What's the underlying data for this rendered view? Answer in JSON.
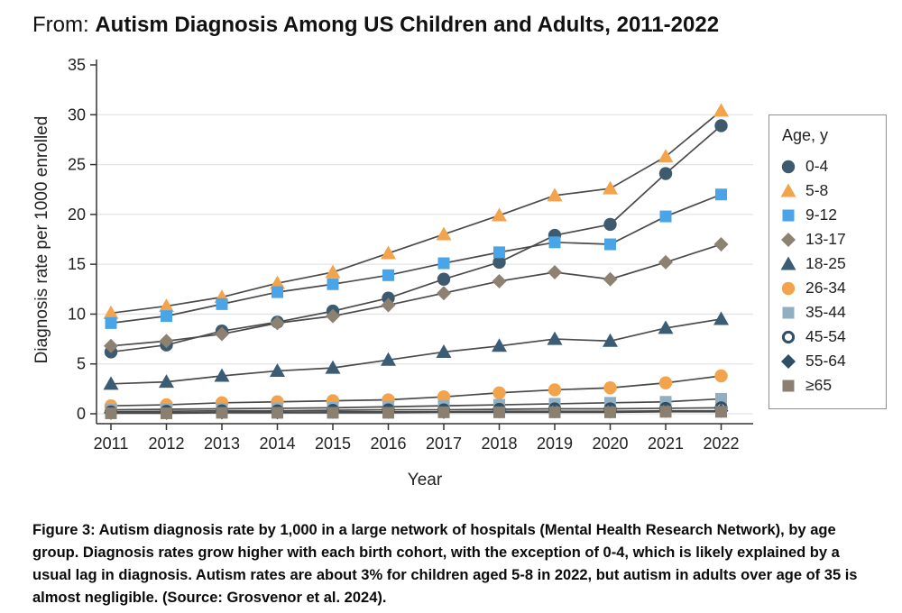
{
  "figure": {
    "title_prefix": "From:",
    "title": "Autism Diagnosis Among US Children and Adults, 2011-2022",
    "caption": "Figure 3: Autism diagnosis rate by 1,000 in a large network of hospitals (Mental Health Research Network), by age group. Diagnosis rates grow higher with each birth cohort, with the exception of 0-4, which is likely explained by a usual lag in diagnosis. Autism rates are about 3% for children aged 5-8 in 2022, but autism in adults over age of 35 is almost negligible. (Source: Grosvenor et al. 2024)."
  },
  "chart_data": {
    "type": "line",
    "title": "Autism Diagnosis Among US Children and Adults, 2011-2022",
    "xlabel": "Year",
    "ylabel": "Diagnosis rate per 1000 enrolled",
    "x": [
      "2011",
      "2012",
      "2013",
      "2014",
      "2015",
      "2016",
      "2017",
      "2018",
      "2019",
      "2020",
      "2021",
      "2022"
    ],
    "ylim": [
      0,
      35
    ],
    "yticks": [
      0,
      5,
      10,
      15,
      20,
      25,
      30,
      35
    ],
    "grid": "horizontal",
    "legend_title": "Age, y",
    "legend_position": "right",
    "line_color": "#4a4a4a",
    "grid_color": "#e4e4e4",
    "axis_color": "#333333",
    "series": [
      {
        "name": "0-4",
        "marker": "circle",
        "color": "#3e5a6e",
        "values": [
          6.2,
          6.9,
          8.3,
          9.2,
          10.3,
          11.6,
          13.5,
          15.2,
          17.9,
          19.0,
          24.1,
          28.9
        ]
      },
      {
        "name": "5-8",
        "marker": "triangle",
        "color": "#f3a34b",
        "values": [
          10.1,
          10.8,
          11.7,
          13.1,
          14.2,
          16.1,
          18.0,
          19.9,
          21.9,
          22.6,
          25.8,
          30.4
        ]
      },
      {
        "name": "9-12",
        "marker": "square",
        "color": "#4aa4e8",
        "values": [
          9.1,
          9.8,
          11.0,
          12.2,
          13.0,
          13.9,
          15.1,
          16.2,
          17.2,
          17.0,
          19.8,
          22.0
        ]
      },
      {
        "name": "13-17",
        "marker": "diamond",
        "color": "#8d8272",
        "values": [
          6.8,
          7.3,
          8.0,
          9.1,
          9.8,
          10.9,
          12.1,
          13.3,
          14.2,
          13.5,
          15.2,
          17.0
        ]
      },
      {
        "name": "18-25",
        "marker": "triangle",
        "color": "#3a5c74",
        "values": [
          3.0,
          3.2,
          3.8,
          4.3,
          4.6,
          5.4,
          6.2,
          6.8,
          7.5,
          7.3,
          8.6,
          9.5
        ]
      },
      {
        "name": "26-34",
        "marker": "circle",
        "color": "#f3a34b",
        "values": [
          0.8,
          0.9,
          1.1,
          1.2,
          1.3,
          1.4,
          1.7,
          2.1,
          2.4,
          2.6,
          3.1,
          3.8
        ]
      },
      {
        "name": "35-44",
        "marker": "square",
        "color": "#92afc2",
        "values": [
          0.4,
          0.45,
          0.5,
          0.55,
          0.6,
          0.7,
          0.8,
          0.9,
          1.0,
          1.1,
          1.2,
          1.5
        ]
      },
      {
        "name": "45-54",
        "marker": "open-circle",
        "color": "#2f4f66",
        "values": [
          0.2,
          0.25,
          0.3,
          0.3,
          0.35,
          0.4,
          0.4,
          0.45,
          0.5,
          0.5,
          0.55,
          0.6
        ]
      },
      {
        "name": "55-64",
        "marker": "diamond",
        "color": "#2f4f66",
        "values": [
          0.1,
          0.1,
          0.15,
          0.15,
          0.2,
          0.2,
          0.2,
          0.25,
          0.25,
          0.25,
          0.3,
          0.3
        ]
      },
      {
        "name": "≥65",
        "marker": "square",
        "color": "#8b8070",
        "values": [
          0.05,
          0.05,
          0.1,
          0.1,
          0.1,
          0.1,
          0.15,
          0.15,
          0.15,
          0.15,
          0.2,
          0.2
        ]
      }
    ]
  }
}
